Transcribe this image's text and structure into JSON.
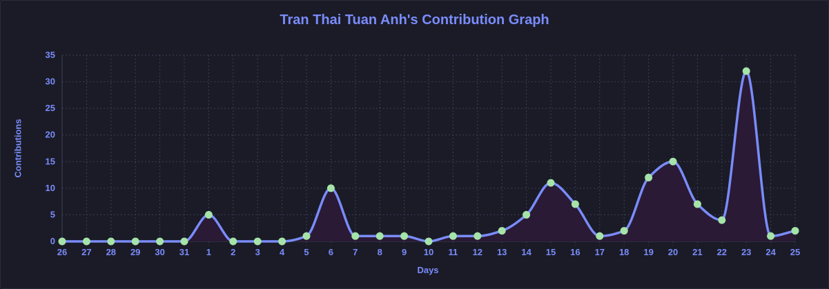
{
  "chart_data": {
    "type": "area",
    "title": "Tran Thai Tuan Anh's Contribution Graph",
    "xlabel": "Days",
    "ylabel": "Contributions",
    "categories": [
      "26",
      "27",
      "28",
      "29",
      "30",
      "31",
      "1",
      "2",
      "3",
      "4",
      "5",
      "6",
      "7",
      "8",
      "9",
      "10",
      "11",
      "12",
      "13",
      "14",
      "15",
      "16",
      "17",
      "18",
      "19",
      "20",
      "21",
      "22",
      "23",
      "24",
      "25"
    ],
    "series": [
      {
        "values": [
          0,
          0,
          0,
          0,
          0,
          0,
          5,
          0,
          0,
          0,
          1,
          10,
          1,
          1,
          1,
          0,
          1,
          1,
          2,
          5,
          11,
          7,
          1,
          2,
          12,
          15,
          7,
          4,
          32,
          1,
          2
        ]
      }
    ],
    "ylim": [
      0,
      35
    ],
    "yticks": [
      "0",
      "5",
      "10",
      "15",
      "20",
      "25",
      "30",
      "35"
    ],
    "grid": true,
    "colors": {
      "line": "#7a8cfb",
      "point": "#a6e3a9",
      "fill": "#2a1a35",
      "grid": "#3d3f55",
      "text": "#7a8cfb",
      "background": "#1a1b27"
    }
  }
}
